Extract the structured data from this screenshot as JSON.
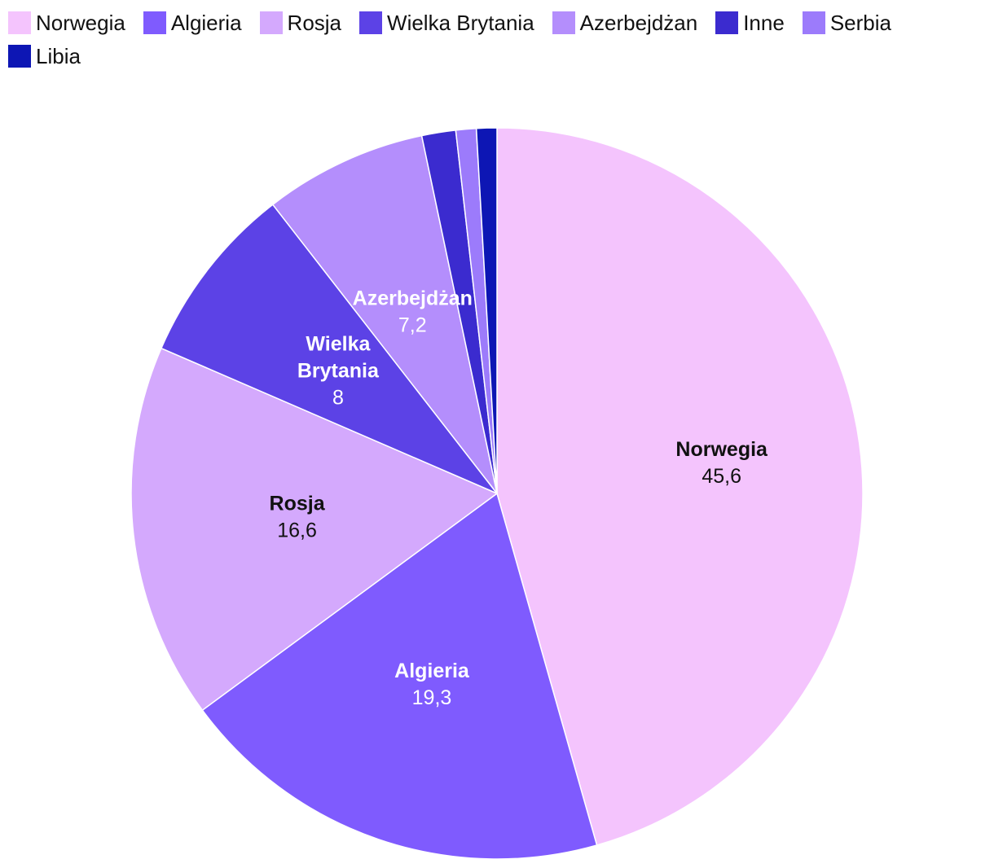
{
  "chart_data": {
    "type": "pie",
    "categories": [
      "Norwegia",
      "Algieria",
      "Rosja",
      "Wielka Brytania",
      "Azerbejdżan",
      "Inne",
      "Serbia",
      "Libia"
    ],
    "values": [
      45.6,
      19.3,
      16.6,
      8,
      7.2,
      1.5,
      0.9,
      0.9
    ],
    "value_labels": [
      "45,6",
      "19,3",
      "16,6",
      "8",
      "7,2",
      "",
      "",
      ""
    ],
    "colors": [
      "#f4c4fd",
      "#7f5bfe",
      "#d4a9fd",
      "#5c42e6",
      "#b48efc",
      "#3b2bcf",
      "#9c7bfb",
      "#0d16b4"
    ],
    "label_colors": [
      "#111111",
      "#ffffff",
      "#111111",
      "#ffffff",
      "#ffffff",
      "#ffffff",
      "#ffffff",
      "#ffffff"
    ],
    "legend_position": "top-left",
    "start_angle_deg": 0,
    "direction": "clockwise"
  }
}
